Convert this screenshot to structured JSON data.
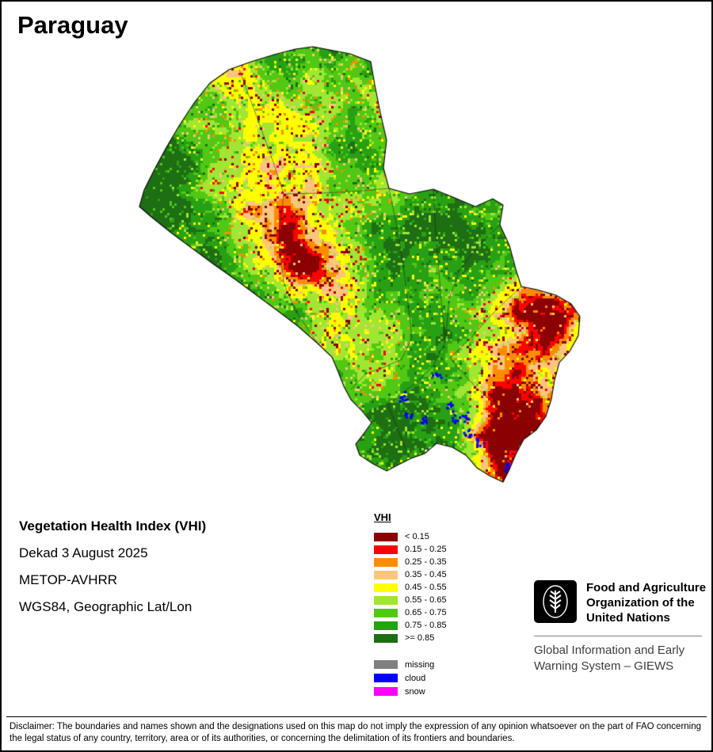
{
  "title": "Paraguay",
  "info": {
    "product": "Vegetation Health Index (VHI)",
    "dekad": "Dekad 3 August 2025",
    "sensor": "METOP-AVHRR",
    "projection": "WGS84, Geographic Lat/Lon"
  },
  "legend": {
    "title": "VHI",
    "classes": [
      {
        "label": "< 0.15",
        "color": "#8b0000"
      },
      {
        "label": "0.15 - 0.25",
        "color": "#ff0000"
      },
      {
        "label": "0.25 - 0.35",
        "color": "#ff8c00"
      },
      {
        "label": "0.35 - 0.45",
        "color": "#ffc47e"
      },
      {
        "label": "0.45 - 0.55",
        "color": "#ffff00"
      },
      {
        "label": "0.55 - 0.65",
        "color": "#a0e632"
      },
      {
        "label": "0.65 - 0.75",
        "color": "#50c814"
      },
      {
        "label": "0.75 - 0.85",
        "color": "#28a014"
      },
      {
        "label": ">= 0.85",
        "color": "#1e6e14"
      }
    ],
    "special": [
      {
        "label": "missing",
        "color": "#808080"
      },
      {
        "label": "cloud",
        "color": "#0000ff"
      },
      {
        "label": "snow",
        "color": "#ff00ff"
      }
    ]
  },
  "footer": {
    "fao_name": "Food and Agriculture Organization of the United Nations",
    "giews": "Global Information and Early Warning System – GIEWS",
    "disclaimer": "Disclaimer: The boundaries and names shown and the designations used on this map do not imply the expression of any opinion whatsoever on the part of FAO concerning the legal status of any country, territory, area or of its authorities, or concerning the delimitation of its frontiers and boundaries."
  }
}
